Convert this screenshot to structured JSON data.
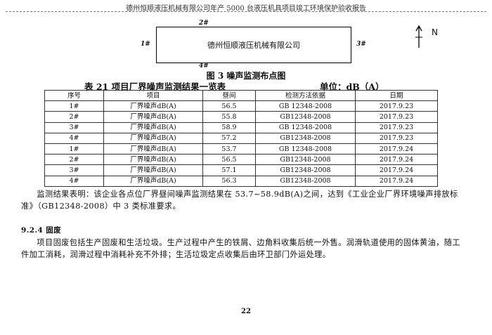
{
  "header": {
    "title": "德州恒顺液压机械有限公司年产 5000 台液压机具项目竣工环境保护验收报告"
  },
  "figure": {
    "company": "德州恒顺液压机械有限公司",
    "points": [
      "1#",
      "2#",
      "3#",
      "4#"
    ],
    "north": "N",
    "caption": "图 3 噪声监测布点图"
  },
  "table": {
    "caption": "表 21 项目厂界噪声监测结果一览表",
    "unit": "单位：dB（A）",
    "columns": [
      "序号",
      "项目",
      "昼间",
      "检测方法依据",
      "日期"
    ],
    "rows": [
      [
        "1#",
        "厂界噪声dB(A)",
        "56.5",
        "GB 12348-2008",
        "2017.9.23"
      ],
      [
        "2#",
        "厂界噪声dB(A)",
        "55.8",
        "GB12348-2008",
        "2017.9.23"
      ],
      [
        "3#",
        "厂界噪声dB(A)",
        "58.9",
        "GB 12348-2008",
        "2017.9.23"
      ],
      [
        "4#",
        "厂界噪声dB(A)",
        "57.2",
        "GB12348-2008",
        "2017.9.23"
      ],
      [
        "1#",
        "厂界噪声dB(A)",
        "53.7",
        "GB 12348-2008",
        "2017.9.24"
      ],
      [
        "2#",
        "厂界噪声dB(A)",
        "56.5",
        "GB12348-2008",
        "2017.9.24"
      ],
      [
        "3#",
        "厂界噪声dB(A)",
        "57.1",
        "GB12348-2008",
        "2017.9.24"
      ],
      [
        "4#",
        "厂界噪声dB(A)",
        "56.3",
        "GB12348-2008",
        "2017.9.24"
      ]
    ]
  },
  "body": {
    "result": "监测结果表明：该企业各点位厂界昼间噪声监测结果在 53.7~58.9dB(A)之间，达到《工业企业厂界环境噪声排放标准》（GB12348-2008）中 3 类标准要求。",
    "section": "9.2.4 固废",
    "waste": "项目固废包括生产固废和生活垃圾。生产过程中产生的铁屑、边角料收集后统一外售。润滑轨道使用的固体黄油，随工件加工消耗，润滑过程中消耗补充不外排；生活垃圾定点收集后由环卫部门外运处理。"
  },
  "page_number": "22"
}
